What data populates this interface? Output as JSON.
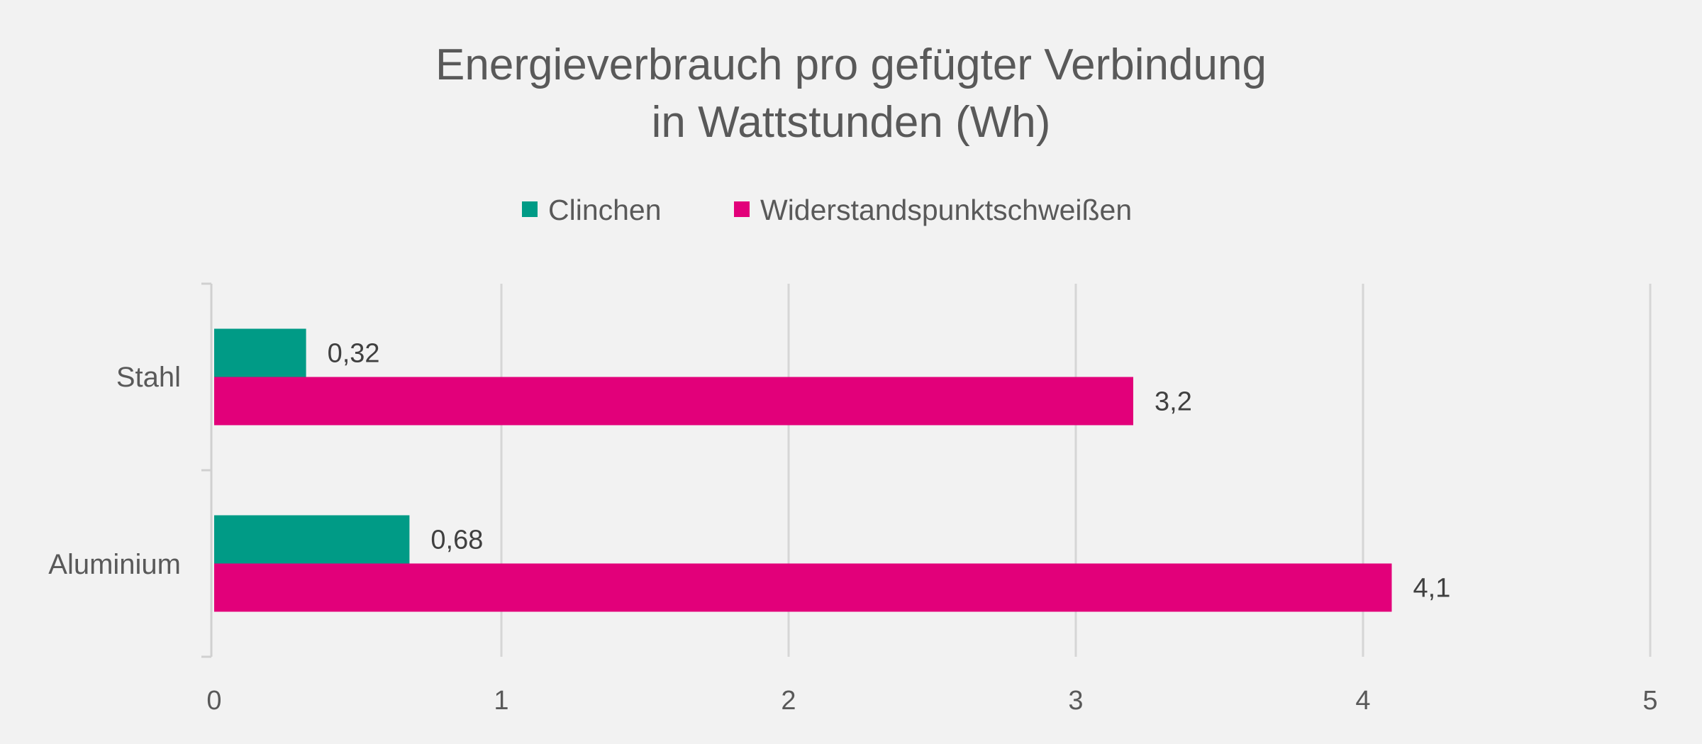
{
  "chart_data": {
    "type": "bar",
    "orientation": "horizontal",
    "title": [
      "Energieverbrauch pro gefügter Verbindung",
      "in Wattstunden (Wh)"
    ],
    "categories": [
      "Stahl",
      "Aluminium"
    ],
    "series": [
      {
        "name": "Clinchen",
        "values": [
          0.32,
          0.68
        ],
        "labels": [
          "0,32",
          "0,68"
        ],
        "color": "#009B86"
      },
      {
        "name": "Widerstandspunktschweißen",
        "values": [
          3.2,
          4.1
        ],
        "labels": [
          "3,2",
          "4,1"
        ],
        "color": "#E2007A"
      }
    ],
    "xlim": [
      0,
      5
    ],
    "xticks": [
      0,
      1,
      2,
      3,
      4,
      5
    ],
    "xtick_labels": [
      "0",
      "1",
      "2",
      "3",
      "4",
      "5"
    ],
    "xlabel": "",
    "ylabel": "",
    "grid": true,
    "legend_position": "top"
  }
}
